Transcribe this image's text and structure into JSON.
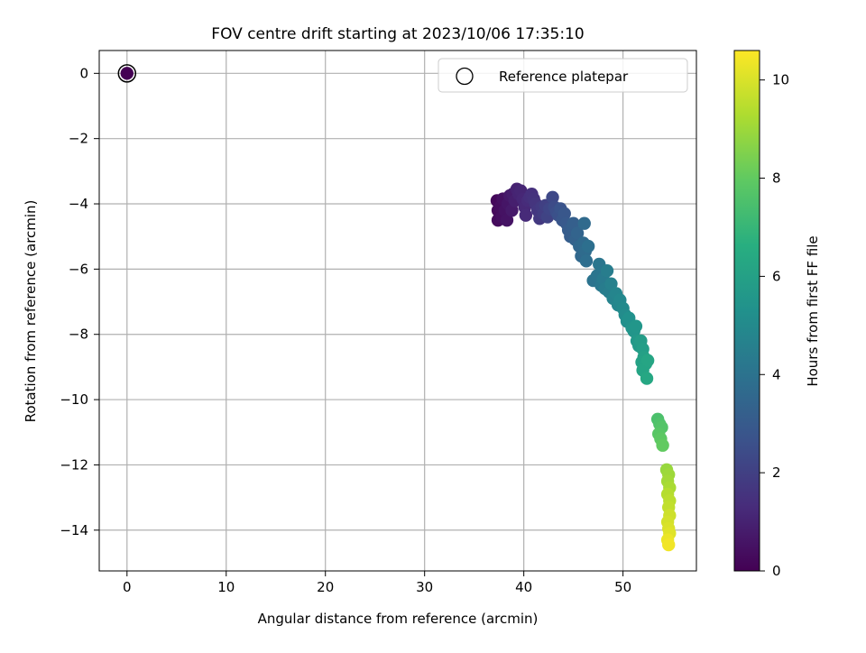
{
  "chart_data": {
    "type": "scatter",
    "title": "FOV centre drift starting at 2023/10/06 17:35:10",
    "xlabel": "Angular distance from reference (arcmin)",
    "ylabel": "Rotation from reference (arcmin)",
    "xlim": [
      -2.8,
      57.4
    ],
    "ylim": [
      -15.25,
      0.7
    ],
    "xticks": [
      0,
      10,
      20,
      30,
      40,
      50
    ],
    "yticks": [
      0,
      -2,
      -4,
      -6,
      -8,
      -10,
      -12,
      -14
    ],
    "grid": true,
    "legend": {
      "position": "top-right",
      "entries": [
        "Reference platepar"
      ]
    },
    "colorbar": {
      "label": "Hours from first FF file",
      "range": [
        0,
        10.6
      ],
      "ticks": [
        0,
        2,
        4,
        6,
        8,
        10
      ],
      "colormap": "viridis"
    },
    "reference_point": {
      "x": 0,
      "y": 0
    },
    "series": [
      {
        "points": [
          [
            0,
            0,
            0
          ],
          [
            37.3,
            -3.9,
            0.2
          ],
          [
            37.4,
            -4.2,
            0.25
          ],
          [
            37.4,
            -4.5,
            0.3
          ],
          [
            37.6,
            -4.1,
            0.35
          ],
          [
            37.8,
            -4.4,
            0.4
          ],
          [
            37.9,
            -3.85,
            0.45
          ],
          [
            38.1,
            -4.2,
            0.5
          ],
          [
            38.3,
            -4.5,
            0.55
          ],
          [
            38.4,
            -4.0,
            0.6
          ],
          [
            38.6,
            -3.75,
            0.7
          ],
          [
            38.8,
            -4.2,
            0.75
          ],
          [
            38.9,
            -3.7,
            0.8
          ],
          [
            39.1,
            -3.9,
            0.9
          ],
          [
            39.3,
            -3.55,
            1.0
          ],
          [
            39.5,
            -3.7,
            1.05
          ],
          [
            39.7,
            -3.6,
            1.1
          ],
          [
            39.9,
            -3.85,
            1.15
          ],
          [
            40.1,
            -4.1,
            1.2
          ],
          [
            40.2,
            -4.35,
            1.25
          ],
          [
            40.4,
            -3.9,
            1.3
          ],
          [
            40.6,
            -3.8,
            1.4
          ],
          [
            40.8,
            -3.7,
            1.45
          ],
          [
            41.0,
            -3.85,
            1.5
          ],
          [
            41.2,
            -4.0,
            1.6
          ],
          [
            41.4,
            -4.2,
            1.7
          ],
          [
            41.6,
            -4.45,
            1.75
          ],
          [
            41.8,
            -4.1,
            1.8
          ],
          [
            42.0,
            -4.3,
            1.9
          ],
          [
            42.2,
            -4.05,
            2.0
          ],
          [
            42.4,
            -4.4,
            2.1
          ],
          [
            42.6,
            -4.15,
            2.2
          ],
          [
            42.9,
            -3.8,
            2.3
          ],
          [
            43.1,
            -4.1,
            2.4
          ],
          [
            43.3,
            -4.25,
            2.5
          ],
          [
            43.5,
            -4.35,
            2.6
          ],
          [
            43.7,
            -4.15,
            2.7
          ],
          [
            43.9,
            -4.5,
            2.8
          ],
          [
            44.1,
            -4.3,
            2.85
          ],
          [
            44.3,
            -4.6,
            2.95
          ],
          [
            44.5,
            -4.8,
            3.05
          ],
          [
            44.7,
            -5.0,
            3.1
          ],
          [
            44.9,
            -4.7,
            3.15
          ],
          [
            45.0,
            -4.6,
            3.2
          ],
          [
            45.2,
            -5.1,
            3.3
          ],
          [
            45.4,
            -4.9,
            3.4
          ],
          [
            45.6,
            -5.3,
            3.5
          ],
          [
            45.8,
            -5.6,
            3.55
          ],
          [
            46.0,
            -5.2,
            3.6
          ],
          [
            46.1,
            -4.6,
            3.65
          ],
          [
            46.2,
            -5.45,
            3.7
          ],
          [
            46.3,
            -5.75,
            3.8
          ],
          [
            46.5,
            -5.3,
            3.85
          ],
          [
            47.0,
            -6.35,
            4.0
          ],
          [
            47.4,
            -6.2,
            4.1
          ],
          [
            47.6,
            -5.85,
            4.15
          ],
          [
            47.8,
            -6.5,
            4.2
          ],
          [
            48.0,
            -6.3,
            4.3
          ],
          [
            48.2,
            -6.6,
            4.4
          ],
          [
            48.4,
            -6.05,
            4.45
          ],
          [
            48.6,
            -6.7,
            4.5
          ],
          [
            48.8,
            -6.45,
            4.6
          ],
          [
            49.0,
            -6.9,
            4.7
          ],
          [
            49.3,
            -6.75,
            4.8
          ],
          [
            49.5,
            -7.1,
            4.85
          ],
          [
            49.7,
            -6.95,
            4.9
          ],
          [
            50.0,
            -7.2,
            5.0
          ],
          [
            50.2,
            -7.4,
            5.1
          ],
          [
            50.4,
            -7.6,
            5.2
          ],
          [
            50.6,
            -7.5,
            5.3
          ],
          [
            50.9,
            -7.8,
            5.4
          ],
          [
            51.1,
            -7.9,
            5.5
          ],
          [
            51.3,
            -7.75,
            5.55
          ],
          [
            51.4,
            -8.2,
            5.6
          ],
          [
            51.6,
            -8.35,
            5.7
          ],
          [
            51.8,
            -8.2,
            5.8
          ],
          [
            52.0,
            -8.45,
            5.9
          ],
          [
            52.1,
            -8.7,
            6.0
          ],
          [
            51.9,
            -8.85,
            6.05
          ],
          [
            52.3,
            -8.9,
            6.1
          ],
          [
            52.0,
            -9.1,
            6.15
          ],
          [
            52.5,
            -8.8,
            6.2
          ],
          [
            52.4,
            -9.35,
            6.3
          ],
          [
            53.5,
            -10.6,
            7.5
          ],
          [
            53.7,
            -10.75,
            7.6
          ],
          [
            53.9,
            -10.85,
            7.7
          ],
          [
            53.6,
            -11.05,
            7.8
          ],
          [
            53.8,
            -11.2,
            7.9
          ],
          [
            54.0,
            -11.4,
            8.0
          ],
          [
            54.4,
            -12.15,
            8.9
          ],
          [
            54.6,
            -12.3,
            9.0
          ],
          [
            54.5,
            -12.5,
            9.1
          ],
          [
            54.7,
            -12.7,
            9.2
          ],
          [
            54.5,
            -12.9,
            9.4
          ],
          [
            54.7,
            -13.1,
            9.5
          ],
          [
            54.6,
            -13.3,
            9.6
          ],
          [
            54.7,
            -13.55,
            9.8
          ],
          [
            54.5,
            -13.75,
            9.9
          ],
          [
            54.6,
            -13.95,
            10.0
          ],
          [
            54.7,
            -14.1,
            10.1
          ],
          [
            54.5,
            -14.3,
            10.3
          ],
          [
            54.6,
            -14.45,
            10.4
          ]
        ]
      }
    ]
  }
}
